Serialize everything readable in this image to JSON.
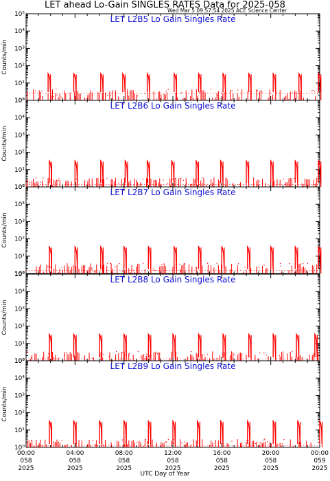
{
  "title": "LET ahead Lo-Gain SINGLES RATES Data for 2025-058",
  "timestamp": "Wed Mar  5 09:57:54 2025 ACE Science Center",
  "x_axis_title": "UTC Day of Year",
  "colors": {
    "series": "#ff0000",
    "panel_title": "#1010d0",
    "axes": "#000000"
  },
  "chart_data": [
    {
      "type": "line",
      "title": "LET L2B5 Lo Gain Singles Rate",
      "ylabel": "Counts/min",
      "yscale": "log",
      "ylim": [
        1,
        100000
      ],
      "yticks": [
        1,
        10,
        100,
        1000,
        10000,
        100000
      ],
      "ytick_labels": [
        "10⁰",
        "10¹",
        "10²",
        "10³",
        "10⁴",
        "10⁵"
      ],
      "xlim": [
        "058 00:00",
        "059 00:00"
      ],
      "spikes_hours": [
        1.8,
        3.9,
        6.1,
        7.9,
        9.9,
        12.1,
        14.1,
        16.1,
        18.2,
        20.2,
        22.3,
        23.9
      ],
      "spike_peak": 35,
      "baseline": 2.5,
      "noise_level": 3.5
    },
    {
      "type": "line",
      "title": "LET L2B6 Lo Gain Singles Rate",
      "ylabel": "Counts/min",
      "yscale": "log",
      "ylim": [
        1,
        100000
      ],
      "yticks": [
        1,
        10,
        100,
        1000,
        10000,
        100000
      ],
      "ytick_labels": [
        "10⁰",
        "10¹",
        "10²",
        "10³",
        "10⁴",
        "10⁵"
      ],
      "xlim": [
        "058 00:00",
        "059 00:00"
      ],
      "spikes_hours": [
        1.9,
        4.0,
        6.1,
        8.1,
        9.9,
        11.9,
        13.9,
        15.9,
        18.0,
        20.0,
        22.0,
        23.9
      ],
      "spike_peak": 32,
      "baseline": 1.4,
      "noise_level": 2.5
    },
    {
      "type": "line",
      "title": "LET L2B7 Lo Gain Singles Rate",
      "ylabel": "Counts/min",
      "yscale": "log",
      "ylim": [
        1,
        100000
      ],
      "yticks": [
        1,
        10,
        100,
        1000,
        10000,
        100000
      ],
      "ytick_labels": [
        "10⁰",
        "10¹",
        "10²",
        "10³",
        "10⁴",
        "10⁵"
      ],
      "xlim": [
        "058 00:00",
        "059 00:00"
      ],
      "spikes_hours": [
        1.9,
        4.0,
        6.1,
        8.0,
        10.0,
        12.1,
        14.1,
        16.0,
        18.1,
        20.0,
        22.0,
        23.9
      ],
      "spike_peak": 35,
      "baseline": 1.5,
      "noise_level": 3.0
    },
    {
      "type": "line",
      "title": "LET L2B8 Lo Gain Singles Rate",
      "ylabel": "Counts/min",
      "yscale": "log",
      "ylim": [
        1,
        100000
      ],
      "yticks": [
        1,
        10,
        100,
        1000,
        10000,
        100000
      ],
      "ytick_labels": [
        "10⁰",
        "10¹",
        "10²",
        "10³",
        "10⁴",
        "10⁵"
      ],
      "xlim": [
        "058 00:00",
        "059 00:00"
      ],
      "spikes_hours": [
        1.9,
        3.9,
        6.0,
        8.0,
        10.0,
        12.0,
        14.1,
        16.1,
        18.2,
        20.2,
        22.1,
        23.6
      ],
      "spike_peak": 34,
      "baseline": 1.3,
      "noise_level": 2.5
    },
    {
      "type": "line",
      "title": "LET L2B9 Lo Gain Singles Rate",
      "ylabel": "Counts/min",
      "yscale": "log",
      "ylim": [
        1,
        100000
      ],
      "yticks": [
        1,
        10,
        100,
        1000,
        10000,
        100000
      ],
      "ytick_labels": [
        "10⁰",
        "10¹",
        "10²",
        "10³",
        "10⁴",
        "10⁵"
      ],
      "xlim": [
        "058 00:00",
        "059 00:00"
      ],
      "spikes_hours": [
        1.9,
        3.9,
        6.0,
        8.0,
        10.0,
        12.0,
        14.0,
        15.9,
        18.1,
        20.2,
        22.2,
        24.0
      ],
      "spike_peak": 33,
      "baseline": 1.3,
      "noise_level": 2.0
    }
  ],
  "x_ticks": [
    {
      "hour": 0,
      "time": "00:00",
      "doy": "058",
      "year": "2025"
    },
    {
      "hour": 4,
      "time": "04:00",
      "doy": "058",
      "year": "2025"
    },
    {
      "hour": 8,
      "time": "08:00",
      "doy": "058",
      "year": "2025"
    },
    {
      "hour": 12,
      "time": "12:00",
      "doy": "058",
      "year": "2025"
    },
    {
      "hour": 16,
      "time": "16:00",
      "doy": "058",
      "year": "2025"
    },
    {
      "hour": 20,
      "time": "20:00",
      "doy": "058",
      "year": "2025"
    },
    {
      "hour": 24,
      "time": "00:00",
      "doy": "059",
      "year": "2025"
    }
  ]
}
